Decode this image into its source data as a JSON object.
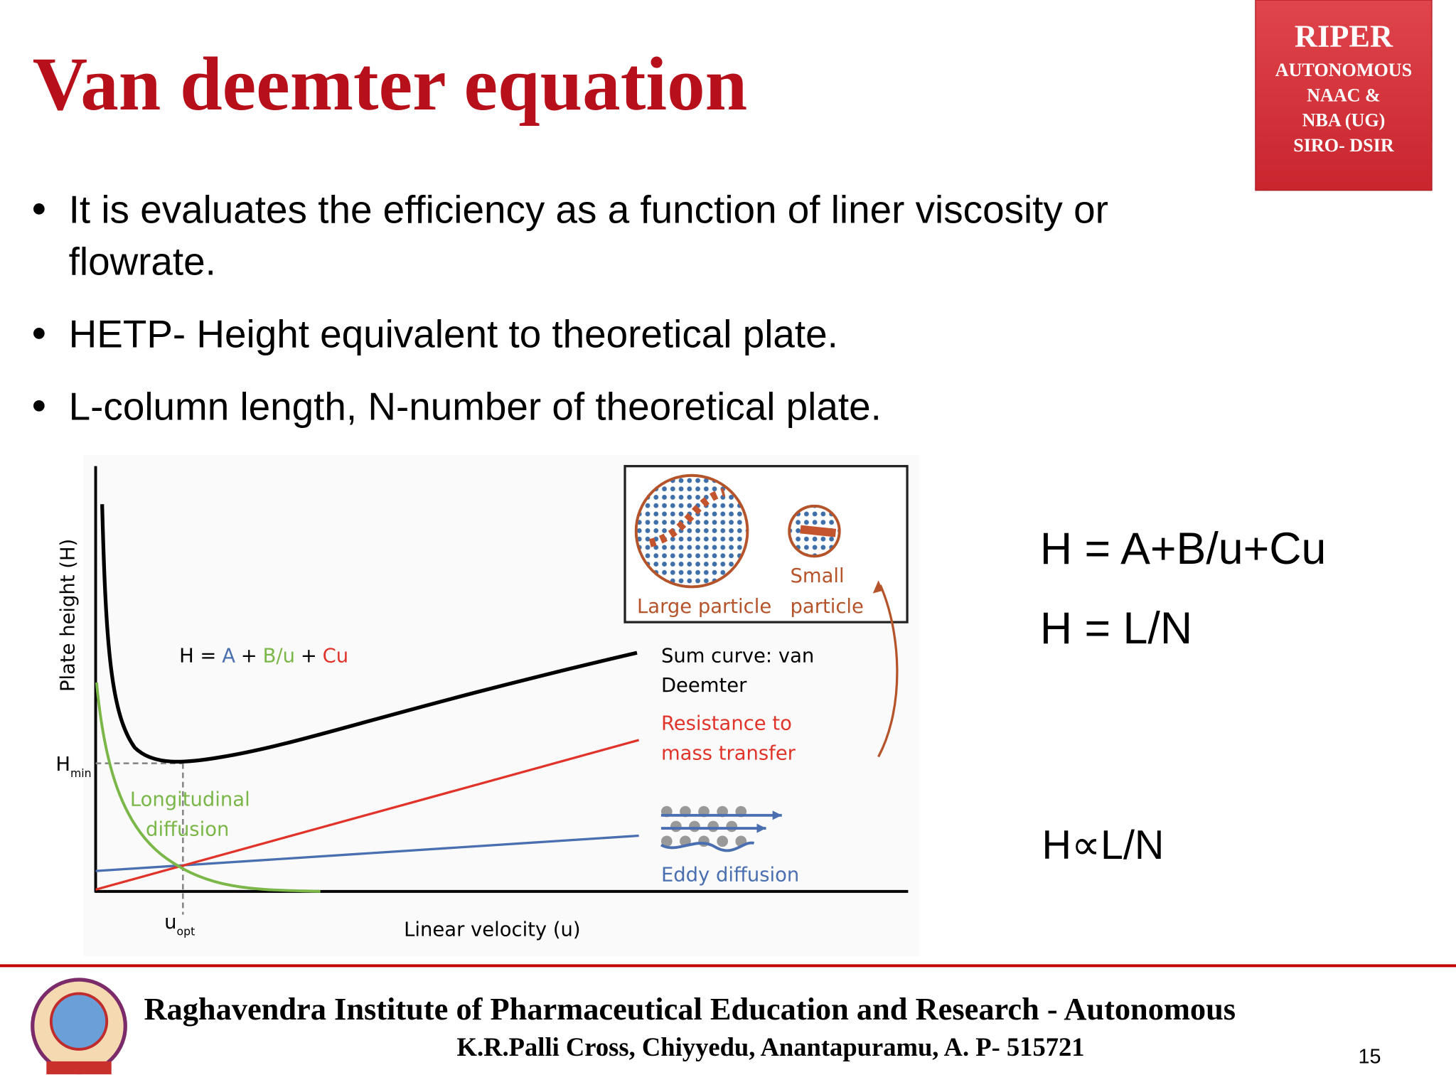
{
  "header": {
    "title": "Van deemter equation",
    "badge": [
      "RIPER",
      "AUTONOMOUS",
      "NAAC &",
      "NBA (UG)",
      "SIRO- DSIR"
    ]
  },
  "bullets": [
    "It is evaluates the efficiency as a function of liner viscosity or",
    "flowrate.",
    "HETP- Height equivalent to theoretical plate.",
    "L-column length, N-number of theoretical plate."
  ],
  "figure": {
    "y_axis_label": "Plate height (H)",
    "h_min": {
      "main": "H",
      "sub": "min"
    },
    "u_opt": {
      "main": "u",
      "sub": "opt"
    },
    "x_axis_label": "Linear velocity (u)",
    "equation": [
      "H =",
      "A",
      "+",
      "B/u",
      "+",
      "Cu"
    ],
    "longitudinal": [
      "Longitudinal",
      "diffusion"
    ],
    "sum_curve": [
      "Sum curve: van",
      "Deemter"
    ],
    "resistance": [
      "Resistance to",
      "mass transfer"
    ],
    "eddy": "Eddy diffusion",
    "large_particle": "Large particle",
    "small_particle": [
      "Small",
      "particle"
    ]
  },
  "equations": [
    "H = A+B/u+Cu",
    "H = L/N",
    "H∝L/N"
  ],
  "footer": {
    "institute": "Raghavendra Institute of Pharmaceutical Education and Research - Autonomous",
    "address": "K.R.Palli Cross, Chiyyedu, Anantapuramu, A. P- 515721",
    "page": "15"
  }
}
